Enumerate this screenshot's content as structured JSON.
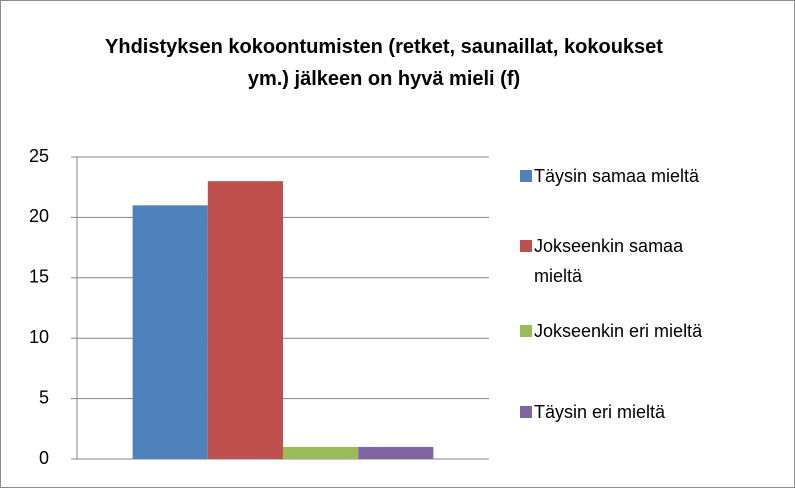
{
  "chart_data": {
    "type": "bar",
    "title": "Yhdistyksen kokoontumisten (retket, saunaillat, kokoukset ym.) jälkeen on hyvä mieli (f)",
    "categories": [
      null
    ],
    "series": [
      {
        "name": "Täysin samaa mieltä",
        "color": "#4f81bd",
        "values": [
          21
        ]
      },
      {
        "name": "Jokseenkin samaa mieltä",
        "color": "#c0504d",
        "values": [
          23
        ]
      },
      {
        "name": "Jokseenkin eri mieltä",
        "color": "#9bbb59",
        "values": [
          1
        ]
      },
      {
        "name": "Täysin eri mieltä",
        "color": "#8064a2",
        "values": [
          1
        ]
      }
    ],
    "ylim": [
      0,
      25
    ],
    "yticks": [
      0,
      5,
      10,
      15,
      20,
      25
    ],
    "grid": true,
    "legend": "right"
  }
}
